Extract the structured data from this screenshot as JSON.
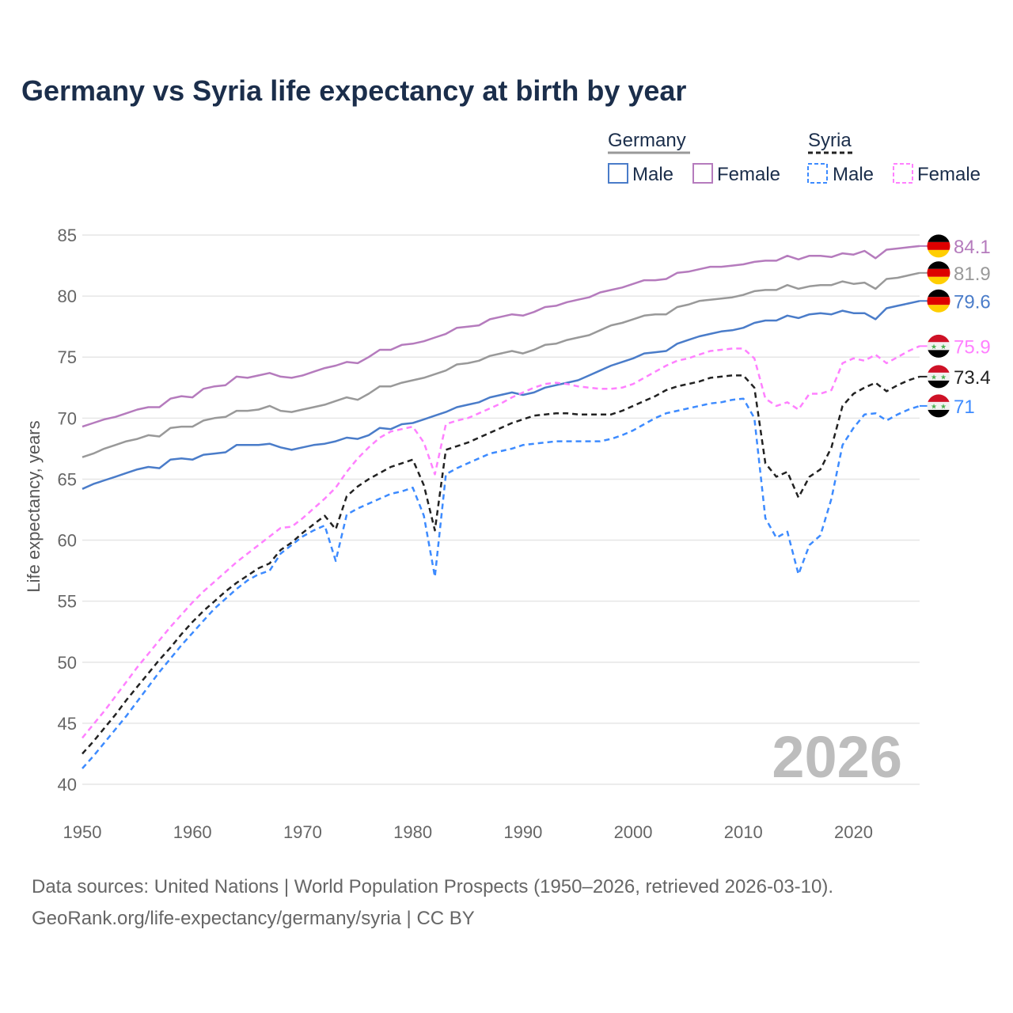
{
  "chart_data": {
    "type": "line",
    "title": "Germany vs Syria life expectancy at birth by year",
    "xlabel": "",
    "ylabel": "Life expectancy, years",
    "xlim": [
      1950,
      2026
    ],
    "ylim": [
      40,
      85
    ],
    "x_ticks": [
      1950,
      1960,
      1970,
      1980,
      1990,
      2000,
      2010,
      2020
    ],
    "y_ticks": [
      40,
      45,
      50,
      55,
      60,
      65,
      70,
      75,
      80,
      85
    ],
    "grid": true,
    "watermark_year": "2026",
    "legend": {
      "placement": "top-right",
      "groups": [
        {
          "name": "Germany",
          "style": "solid",
          "items": [
            "Male",
            "Female"
          ]
        },
        {
          "name": "Syria",
          "style": "dashed",
          "items": [
            "Male",
            "Female"
          ]
        }
      ]
    },
    "series": [
      {
        "name": "Germany Female",
        "country": "Germany",
        "color": "#b57bbd",
        "dashed": false,
        "end_label": "84.1",
        "values": [
          69.3,
          69.6,
          69.9,
          70.1,
          70.4,
          70.7,
          70.9,
          70.9,
          71.6,
          71.8,
          71.7,
          72.4,
          72.6,
          72.7,
          73.4,
          73.3,
          73.5,
          73.7,
          73.4,
          73.3,
          73.5,
          73.8,
          74.1,
          74.3,
          74.6,
          74.5,
          75.0,
          75.6,
          75.6,
          76.0,
          76.1,
          76.3,
          76.6,
          76.9,
          77.4,
          77.5,
          77.6,
          78.1,
          78.3,
          78.5,
          78.4,
          78.7,
          79.1,
          79.2,
          79.5,
          79.7,
          79.9,
          80.3,
          80.5,
          80.7,
          81.0,
          81.3,
          81.3,
          81.4,
          81.9,
          82.0,
          82.2,
          82.4,
          82.4,
          82.5,
          82.6,
          82.8,
          82.9,
          82.9,
          83.3,
          83.0,
          83.3,
          83.3,
          83.2,
          83.5,
          83.4,
          83.7,
          83.1,
          83.8,
          83.9,
          84.0,
          84.1
        ]
      },
      {
        "name": "Germany Total",
        "country": "Germany",
        "color": "#999999",
        "dashed": false,
        "end_label": "81.9",
        "values": [
          66.8,
          67.1,
          67.5,
          67.8,
          68.1,
          68.3,
          68.6,
          68.5,
          69.2,
          69.3,
          69.3,
          69.8,
          70.0,
          70.1,
          70.6,
          70.6,
          70.7,
          71.0,
          70.6,
          70.5,
          70.7,
          70.9,
          71.1,
          71.4,
          71.7,
          71.5,
          72.0,
          72.6,
          72.6,
          72.9,
          73.1,
          73.3,
          73.6,
          73.9,
          74.4,
          74.5,
          74.7,
          75.1,
          75.3,
          75.5,
          75.3,
          75.6,
          76.0,
          76.1,
          76.4,
          76.6,
          76.8,
          77.2,
          77.6,
          77.8,
          78.1,
          78.4,
          78.5,
          78.5,
          79.1,
          79.3,
          79.6,
          79.7,
          79.8,
          79.9,
          80.1,
          80.4,
          80.5,
          80.5,
          80.9,
          80.6,
          80.8,
          80.9,
          80.9,
          81.2,
          81.0,
          81.1,
          80.6,
          81.4,
          81.5,
          81.7,
          81.9
        ]
      },
      {
        "name": "Germany Male",
        "country": "Germany",
        "color": "#4a7cc9",
        "dashed": false,
        "end_label": "79.6",
        "values": [
          64.2,
          64.6,
          64.9,
          65.2,
          65.5,
          65.8,
          66.0,
          65.9,
          66.6,
          66.7,
          66.6,
          67.0,
          67.1,
          67.2,
          67.8,
          67.8,
          67.8,
          67.9,
          67.6,
          67.4,
          67.6,
          67.8,
          67.9,
          68.1,
          68.4,
          68.3,
          68.6,
          69.2,
          69.1,
          69.5,
          69.6,
          69.9,
          70.2,
          70.5,
          70.9,
          71.1,
          71.3,
          71.7,
          71.9,
          72.1,
          71.9,
          72.1,
          72.5,
          72.7,
          72.9,
          73.1,
          73.5,
          73.9,
          74.3,
          74.6,
          74.9,
          75.3,
          75.4,
          75.5,
          76.1,
          76.4,
          76.7,
          76.9,
          77.1,
          77.2,
          77.4,
          77.8,
          78.0,
          78.0,
          78.4,
          78.2,
          78.5,
          78.6,
          78.5,
          78.8,
          78.6,
          78.6,
          78.1,
          79.0,
          79.2,
          79.4,
          79.6
        ]
      },
      {
        "name": "Syria Female",
        "country": "Syria",
        "color": "#ff80ff",
        "dashed": true,
        "end_label": "75.9",
        "values": [
          43.8,
          44.9,
          46.0,
          47.2,
          48.4,
          49.6,
          50.7,
          51.8,
          52.9,
          53.9,
          54.9,
          55.8,
          56.6,
          57.4,
          58.2,
          58.9,
          59.6,
          60.3,
          61.0,
          61.1,
          61.8,
          62.6,
          63.4,
          64.3,
          65.6,
          66.7,
          67.6,
          68.4,
          68.9,
          69.1,
          69.3,
          68.0,
          65.4,
          69.5,
          69.8,
          70.0,
          70.4,
          70.8,
          71.2,
          71.7,
          72.1,
          72.5,
          72.8,
          72.9,
          72.8,
          72.6,
          72.5,
          72.4,
          72.4,
          72.5,
          72.8,
          73.3,
          73.8,
          74.3,
          74.7,
          74.9,
          75.2,
          75.5,
          75.6,
          75.7,
          75.7,
          74.9,
          71.6,
          71.0,
          71.3,
          70.7,
          72.0,
          72.0,
          72.3,
          74.5,
          74.9,
          74.7,
          75.2,
          74.5,
          75.0,
          75.5,
          75.9
        ]
      },
      {
        "name": "Syria Total",
        "country": "Syria",
        "color": "#222222",
        "dashed": true,
        "end_label": "73.4",
        "values": [
          42.5,
          43.5,
          44.6,
          45.7,
          46.9,
          48.0,
          49.1,
          50.2,
          51.2,
          52.3,
          53.3,
          54.2,
          55.0,
          55.8,
          56.5,
          57.1,
          57.7,
          58.1,
          59.2,
          59.8,
          60.6,
          61.3,
          62.0,
          60.9,
          63.6,
          64.4,
          65.0,
          65.5,
          66.0,
          66.3,
          66.6,
          64.5,
          60.8,
          67.4,
          67.7,
          68.0,
          68.4,
          68.8,
          69.2,
          69.6,
          69.9,
          70.2,
          70.3,
          70.4,
          70.4,
          70.3,
          70.3,
          70.3,
          70.3,
          70.6,
          71.0,
          71.4,
          71.8,
          72.3,
          72.6,
          72.8,
          73.0,
          73.3,
          73.4,
          73.5,
          73.5,
          72.5,
          66.3,
          65.2,
          65.6,
          63.5,
          65.2,
          65.8,
          67.6,
          71.0,
          72.0,
          72.5,
          72.9,
          72.2,
          72.7,
          73.1,
          73.4
        ]
      },
      {
        "name": "Syria Male",
        "country": "Syria",
        "color": "#3d8bff",
        "dashed": true,
        "end_label": "71",
        "values": [
          41.3,
          42.3,
          43.4,
          44.5,
          45.6,
          46.8,
          48.0,
          49.2,
          50.3,
          51.4,
          52.4,
          53.4,
          54.4,
          55.2,
          56.0,
          56.7,
          57.2,
          57.5,
          58.9,
          59.6,
          60.3,
          60.8,
          61.2,
          58.3,
          62.1,
          62.6,
          63.0,
          63.4,
          63.8,
          64.0,
          64.3,
          62.0,
          57.0,
          65.4,
          65.9,
          66.3,
          66.7,
          67.1,
          67.3,
          67.5,
          67.8,
          67.9,
          68.0,
          68.1,
          68.1,
          68.1,
          68.1,
          68.1,
          68.3,
          68.6,
          69.0,
          69.5,
          70.0,
          70.4,
          70.6,
          70.8,
          71.0,
          71.2,
          71.3,
          71.5,
          71.6,
          70.0,
          61.8,
          60.2,
          60.7,
          57.2,
          59.6,
          60.4,
          63.4,
          67.8,
          69.2,
          70.3,
          70.4,
          69.8,
          70.3,
          70.7,
          71.0
        ]
      }
    ]
  },
  "footer": {
    "line1": "Data sources: United Nations | World Population Prospects (1950–2026, retrieved 2026-03-10).",
    "line2": "GeoRank.org/life-expectancy/germany/syria | CC BY"
  }
}
